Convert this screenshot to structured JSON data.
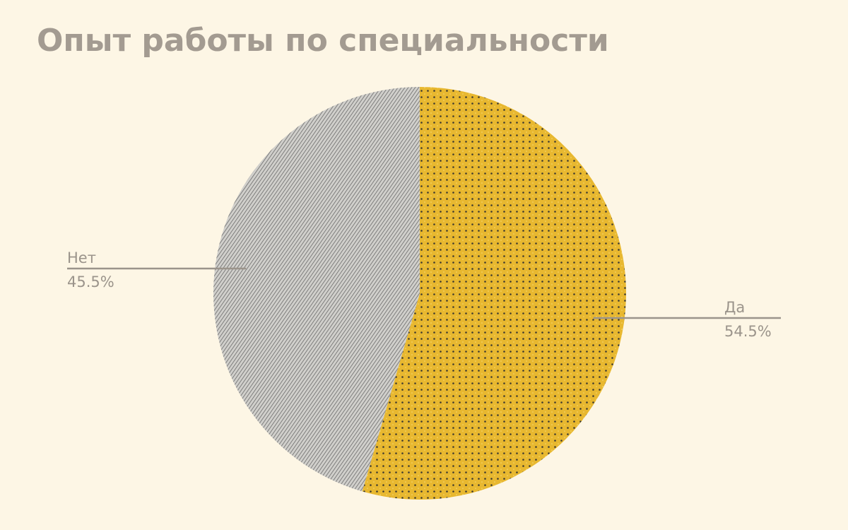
{
  "chart_data": {
    "type": "pie",
    "title": "Опыт работы по специальности",
    "categories": [
      "Да",
      "Нет"
    ],
    "values": [
      54.5,
      45.5
    ],
    "value_labels": [
      "54.5%",
      "45.5%"
    ],
    "colors": [
      "#e8b830",
      "#d0cfcb"
    ]
  }
}
